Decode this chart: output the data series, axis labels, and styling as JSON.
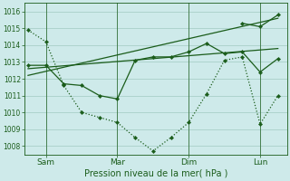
{
  "title": "Pression niveau de la mer( hPa )",
  "bg_color": "#ceeaea",
  "grid_color": "#a8cfc8",
  "line_color": "#1a5c1a",
  "x_ticks_labels": [
    "Sam",
    "Mar",
    "Dim",
    "Lun"
  ],
  "x_ticks_pos": [
    1,
    5,
    9,
    13
  ],
  "ylim": [
    1007.5,
    1016.5
  ],
  "yticks": [
    1008,
    1009,
    1010,
    1011,
    1012,
    1013,
    1014,
    1015,
    1016
  ],
  "xlim": [
    -0.2,
    14.5
  ],
  "series_dotted_x": [
    0,
    1,
    2,
    3,
    4,
    5,
    6,
    7,
    8,
    9,
    10,
    11,
    12,
    13,
    14
  ],
  "series_dotted_y": [
    1014.9,
    1014.2,
    1011.6,
    1010.0,
    1009.7,
    1009.4,
    1008.5,
    1007.7,
    1008.5,
    1009.4,
    1011.1,
    1013.1,
    1013.3,
    1009.3,
    1011.0
  ],
  "series_solid_x": [
    0,
    1,
    2,
    3,
    4,
    5,
    6,
    7,
    8,
    9,
    10,
    11,
    12,
    13,
    14
  ],
  "series_solid_y": [
    1012.8,
    1012.8,
    1011.7,
    1011.6,
    1011.0,
    1010.8,
    1013.1,
    1013.3,
    1013.3,
    1013.6,
    1014.1,
    1013.5,
    1013.6,
    1012.4,
    1013.2
  ],
  "trend1_x": [
    0,
    14
  ],
  "trend1_y": [
    1012.6,
    1013.8
  ],
  "trend2_x": [
    0,
    14
  ],
  "trend2_y": [
    1012.2,
    1015.6
  ],
  "top_series_x": [
    12,
    13,
    14
  ],
  "top_series_y": [
    1015.3,
    1015.1,
    1015.8
  ],
  "vlines_x": [
    1,
    5,
    9,
    13
  ]
}
